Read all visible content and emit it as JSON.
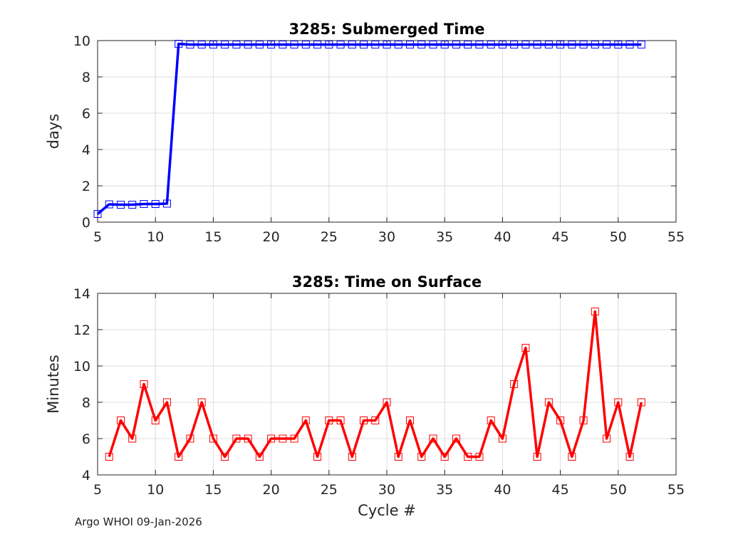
{
  "chart_data": [
    {
      "type": "line",
      "title": "3285: Submerged Time",
      "xlabel": "",
      "ylabel": "days",
      "xlim": [
        5,
        55
      ],
      "ylim": [
        0,
        10
      ],
      "xticks": [
        5,
        10,
        15,
        20,
        25,
        30,
        35,
        40,
        45,
        50,
        55
      ],
      "yticks": [
        0,
        2,
        4,
        6,
        8,
        10
      ],
      "grid": true,
      "series": [
        {
          "name": "Submerged Time",
          "color": "#0000ff",
          "marker": "square",
          "x": [
            5,
            6,
            7,
            8,
            9,
            10,
            11,
            12,
            13,
            14,
            15,
            16,
            17,
            18,
            19,
            20,
            21,
            22,
            23,
            24,
            25,
            26,
            27,
            28,
            29,
            30,
            31,
            32,
            33,
            34,
            35,
            36,
            37,
            38,
            39,
            40,
            41,
            42,
            43,
            44,
            45,
            46,
            47,
            48,
            49,
            50,
            51,
            52
          ],
          "values": [
            0.45,
            0.98,
            0.96,
            0.96,
            1.0,
            1.0,
            1.02,
            9.82,
            9.78,
            9.78,
            9.78,
            9.78,
            9.78,
            9.78,
            9.78,
            9.78,
            9.78,
            9.78,
            9.78,
            9.78,
            9.78,
            9.78,
            9.78,
            9.78,
            9.78,
            9.78,
            9.78,
            9.78,
            9.78,
            9.78,
            9.78,
            9.78,
            9.78,
            9.78,
            9.78,
            9.78,
            9.78,
            9.78,
            9.78,
            9.78,
            9.78,
            9.78,
            9.78,
            9.78,
            9.78,
            9.78,
            9.78,
            9.78
          ]
        }
      ]
    },
    {
      "type": "line",
      "title": "3285: Time on Surface",
      "xlabel": "Cycle #",
      "ylabel": "Minutes",
      "xlim": [
        5,
        55
      ],
      "ylim": [
        4,
        14
      ],
      "xticks": [
        5,
        10,
        15,
        20,
        25,
        30,
        35,
        40,
        45,
        50,
        55
      ],
      "yticks": [
        4,
        6,
        8,
        10,
        12,
        14
      ],
      "grid": true,
      "series": [
        {
          "name": "Time on Surface",
          "color": "#ff0000",
          "marker": "square",
          "x": [
            6,
            7,
            8,
            9,
            10,
            11,
            12,
            13,
            14,
            15,
            16,
            17,
            18,
            19,
            20,
            21,
            22,
            23,
            24,
            25,
            26,
            27,
            28,
            29,
            30,
            31,
            32,
            33,
            34,
            35,
            36,
            37,
            38,
            39,
            40,
            41,
            42,
            43,
            44,
            45,
            46,
            47,
            48,
            49,
            50,
            51,
            52
          ],
          "values": [
            5,
            7,
            6,
            9,
            7,
            8,
            5,
            6,
            8,
            6,
            5,
            6,
            6,
            5,
            6,
            6,
            6,
            7,
            5,
            7,
            7,
            5,
            7,
            7,
            8,
            5,
            7,
            5,
            6,
            5,
            6,
            5,
            5,
            7,
            6,
            9,
            11,
            5,
            8,
            7,
            5,
            7,
            13,
            6,
            8,
            5,
            8
          ]
        }
      ]
    }
  ],
  "footer": "Argo WHOI 09-Jan-2026"
}
